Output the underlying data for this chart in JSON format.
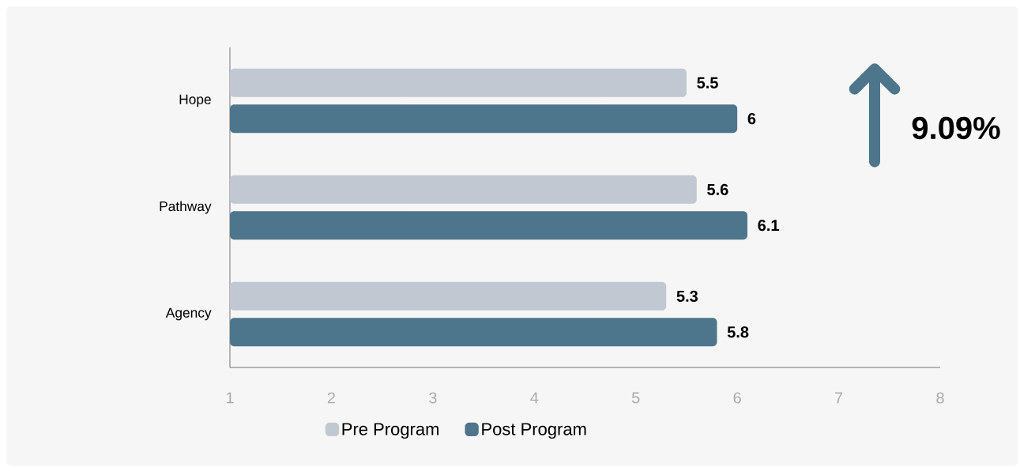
{
  "chart_data": {
    "type": "bar",
    "orientation": "horizontal",
    "categories": [
      "Hope",
      "Pathway",
      "Agency"
    ],
    "series": [
      {
        "name": "Pre Program",
        "color": "#c1c8d1",
        "values": [
          5.5,
          5.6,
          5.3
        ]
      },
      {
        "name": "Post Program",
        "color": "#4d758b",
        "values": [
          6,
          6.1,
          5.8
        ]
      }
    ],
    "xlim": [
      1,
      8
    ],
    "xticks": [
      1,
      2,
      3,
      4,
      5,
      6,
      7,
      8
    ],
    "data_labels": true,
    "legend": "bottom",
    "annotations": [
      "9.09%"
    ]
  }
}
